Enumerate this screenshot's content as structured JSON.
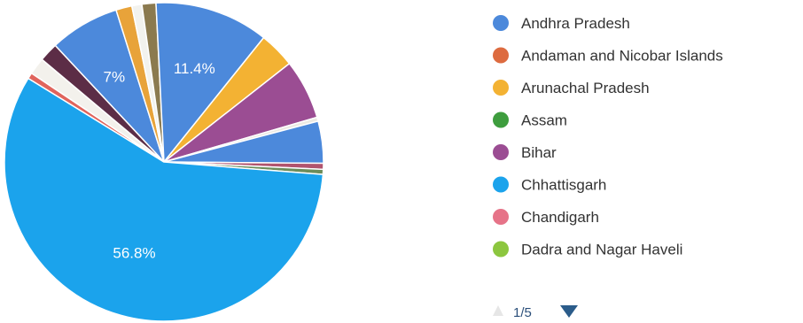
{
  "chart_data": {
    "type": "pie",
    "legend_position": "right",
    "slices": [
      {
        "color": "#4c89db",
        "value": 7,
        "label": "7%"
      },
      {
        "color": "#e8a33a",
        "value": 1.6,
        "label": ""
      },
      {
        "color": "#f2f2ee",
        "value": 1.0,
        "label": ""
      },
      {
        "color": "#8b7a4f",
        "value": 1.4,
        "label": ""
      },
      {
        "color": "#4c89db",
        "value": 11.4,
        "label": "11.4%"
      },
      {
        "color": "#f3b233",
        "value": 3.6,
        "label": ""
      },
      {
        "color": "#9b4d93",
        "value": 6.0,
        "label": ""
      },
      {
        "color": "#eceae3",
        "value": 0.4,
        "label": ""
      },
      {
        "color": "#4c89db",
        "value": 4.2,
        "label": ""
      },
      {
        "color": "#b1546e",
        "value": 0.6,
        "label": ""
      },
      {
        "color": "#6c8c5a",
        "value": 0.5,
        "label": ""
      },
      {
        "color": "#1ba3ec",
        "value": 56.8,
        "label": "56.8%"
      },
      {
        "color": "#e0645c",
        "value": 0.6,
        "label": ""
      },
      {
        "color": "#f3f1ec",
        "value": 1.7,
        "label": ""
      },
      {
        "color": "#5c2d46",
        "value": 1.9,
        "label": ""
      }
    ],
    "legend": [
      {
        "label": "Andhra Pradesh",
        "color": "#4c89db"
      },
      {
        "label": "Andaman and Nicobar Islands",
        "color": "#dd6b3f"
      },
      {
        "label": "Arunachal Pradesh",
        "color": "#f3b233"
      },
      {
        "label": "Assam",
        "color": "#3e9d3e"
      },
      {
        "label": "Bihar",
        "color": "#9b4d93"
      },
      {
        "label": "Chhattisgarh",
        "color": "#1ba3ec"
      },
      {
        "label": "Chandigarh",
        "color": "#e67388"
      },
      {
        "label": "Dadra and Nagar Haveli",
        "color": "#8cc63f"
      }
    ],
    "pager": {
      "text": "1/5",
      "color": "#2b5c8a"
    }
  }
}
